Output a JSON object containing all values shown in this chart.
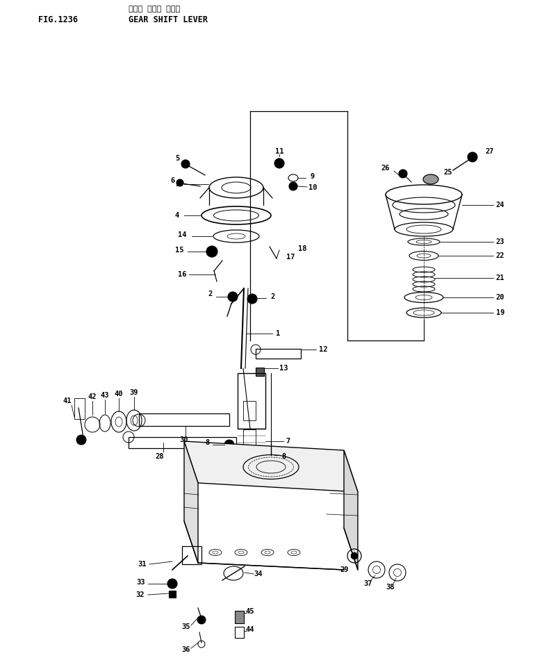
{
  "title_jp": "ギヤー シフト レバー",
  "title_en": "GEAR SHIFT LEVER",
  "fig_number": "FIG.1236",
  "bg_color": "#ffffff",
  "line_color": "#000000"
}
